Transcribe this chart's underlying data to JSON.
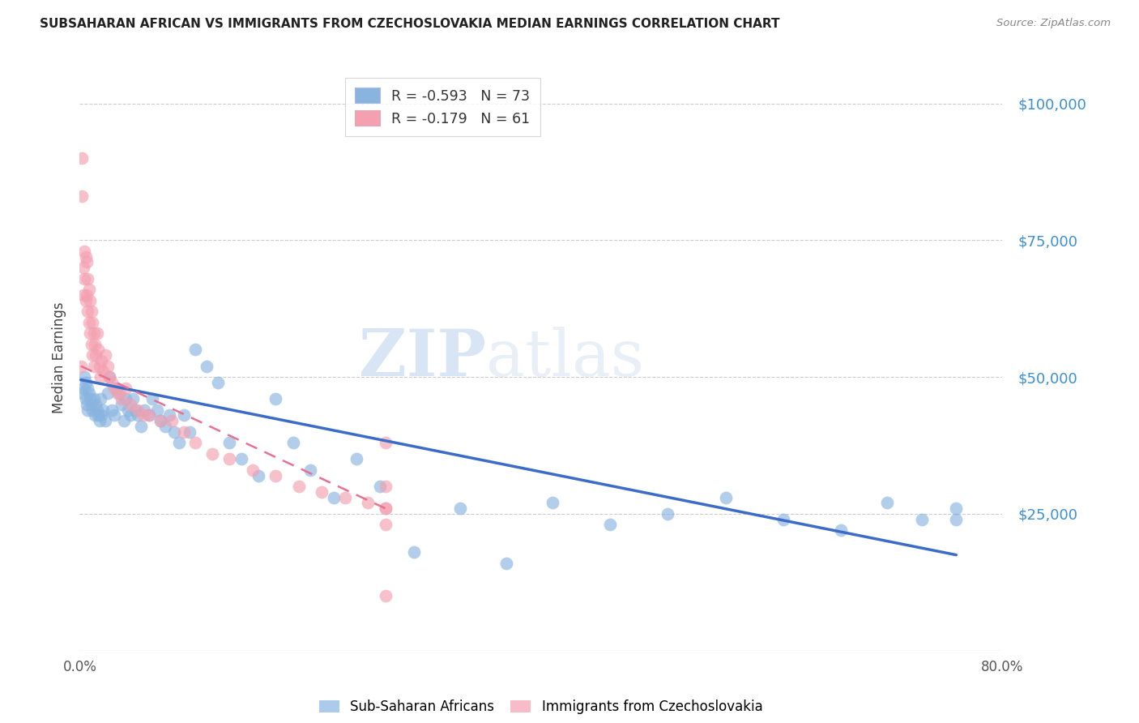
{
  "title": "SUBSAHARAN AFRICAN VS IMMIGRANTS FROM CZECHOSLOVAKIA MEDIAN EARNINGS CORRELATION CHART",
  "source": "Source: ZipAtlas.com",
  "ylabel": "Median Earnings",
  "yticks": [
    0,
    25000,
    50000,
    75000,
    100000
  ],
  "ytick_labels": [
    "",
    "$25,000",
    "$50,000",
    "$75,000",
    "$100,000"
  ],
  "ylim": [
    0,
    107000
  ],
  "xlim": [
    0,
    0.8
  ],
  "blue_R": -0.593,
  "blue_N": 73,
  "pink_R": -0.179,
  "pink_N": 61,
  "blue_color": "#89B4E0",
  "pink_color": "#F4A0B0",
  "trend_blue_color": "#3B6DC7",
  "trend_pink_color": "#E87090",
  "watermark_zip": "ZIP",
  "watermark_atlas": "atlas",
  "blue_scatter_x": [
    0.002,
    0.003,
    0.004,
    0.005,
    0.005,
    0.006,
    0.007,
    0.007,
    0.008,
    0.009,
    0.01,
    0.011,
    0.012,
    0.013,
    0.014,
    0.015,
    0.016,
    0.017,
    0.018,
    0.019,
    0.02,
    0.022,
    0.024,
    0.026,
    0.028,
    0.03,
    0.032,
    0.034,
    0.036,
    0.038,
    0.04,
    0.042,
    0.044,
    0.046,
    0.048,
    0.05,
    0.053,
    0.056,
    0.06,
    0.063,
    0.067,
    0.07,
    0.074,
    0.078,
    0.082,
    0.086,
    0.09,
    0.095,
    0.1,
    0.11,
    0.12,
    0.13,
    0.14,
    0.155,
    0.17,
    0.185,
    0.2,
    0.22,
    0.24,
    0.26,
    0.29,
    0.33,
    0.37,
    0.41,
    0.46,
    0.51,
    0.56,
    0.61,
    0.66,
    0.7,
    0.73,
    0.76,
    0.76
  ],
  "blue_scatter_y": [
    47000,
    48000,
    50000,
    46000,
    49000,
    45000,
    48000,
    44000,
    47000,
    46000,
    45000,
    44000,
    46000,
    43000,
    45000,
    44000,
    43000,
    42000,
    46000,
    43000,
    44000,
    42000,
    47000,
    50000,
    44000,
    43000,
    48000,
    47000,
    45000,
    42000,
    46000,
    44000,
    43000,
    46000,
    44000,
    43000,
    41000,
    44000,
    43000,
    46000,
    44000,
    42000,
    41000,
    43000,
    40000,
    38000,
    43000,
    40000,
    55000,
    52000,
    49000,
    38000,
    35000,
    32000,
    46000,
    38000,
    33000,
    28000,
    35000,
    30000,
    18000,
    26000,
    16000,
    27000,
    23000,
    25000,
    28000,
    24000,
    22000,
    27000,
    24000,
    26000,
    24000
  ],
  "pink_scatter_x": [
    0.001,
    0.002,
    0.002,
    0.003,
    0.003,
    0.004,
    0.004,
    0.005,
    0.005,
    0.006,
    0.006,
    0.007,
    0.007,
    0.008,
    0.008,
    0.009,
    0.009,
    0.01,
    0.01,
    0.011,
    0.011,
    0.012,
    0.012,
    0.013,
    0.014,
    0.015,
    0.016,
    0.017,
    0.018,
    0.019,
    0.02,
    0.022,
    0.024,
    0.026,
    0.028,
    0.03,
    0.033,
    0.036,
    0.04,
    0.044,
    0.05,
    0.055,
    0.06,
    0.07,
    0.08,
    0.09,
    0.1,
    0.115,
    0.13,
    0.15,
    0.17,
    0.19,
    0.21,
    0.23,
    0.25,
    0.265,
    0.265,
    0.265,
    0.265,
    0.265,
    0.265
  ],
  "pink_scatter_y": [
    52000,
    90000,
    83000,
    70000,
    65000,
    73000,
    68000,
    72000,
    64000,
    71000,
    65000,
    68000,
    62000,
    66000,
    60000,
    64000,
    58000,
    62000,
    56000,
    60000,
    54000,
    58000,
    52000,
    56000,
    54000,
    58000,
    55000,
    52000,
    50000,
    53000,
    51000,
    54000,
    52000,
    50000,
    49000,
    48000,
    47000,
    46000,
    48000,
    45000,
    44000,
    43000,
    43000,
    42000,
    42000,
    40000,
    38000,
    36000,
    35000,
    33000,
    32000,
    30000,
    29000,
    28000,
    27000,
    26000,
    38000,
    30000,
    26000,
    23000,
    10000
  ]
}
